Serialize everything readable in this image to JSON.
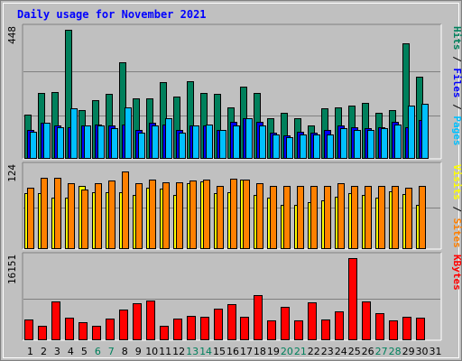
{
  "chart_data": {
    "type": "bar",
    "title": "Daily usage for November 2021",
    "colors": {
      "background": "#c0c0c0",
      "title_text": "#0000ff",
      "hits": "#00805c",
      "files": "#0000ff",
      "pages": "#00c0ff",
      "visits": "#ffff00",
      "sites": "#ff8000",
      "kbytes": "#ff0000",
      "weekend_label": "#00805c",
      "weekday_label": "#000000"
    },
    "days": [
      "1",
      "2",
      "3",
      "4",
      "5",
      "6",
      "7",
      "8",
      "9",
      "10",
      "11",
      "12",
      "13",
      "14",
      "15",
      "16",
      "17",
      "18",
      "19",
      "20",
      "21",
      "22",
      "23",
      "24",
      "25",
      "26",
      "27",
      "28",
      "29",
      "30",
      "31"
    ],
    "weekend_days": [
      "6",
      "7",
      "13",
      "14",
      "20",
      "21",
      "27",
      "28"
    ],
    "panels": [
      {
        "name": "hits-files-pages",
        "ymax_label": "448",
        "ylim": [
          0,
          448
        ],
        "side_labels": [
          {
            "text": "Pages",
            "color": "#00c0ff"
          },
          {
            "text": " / ",
            "color": "#000000"
          },
          {
            "text": "Files",
            "color": "#0000ff"
          },
          {
            "text": " / ",
            "color": "#000000"
          },
          {
            "text": "Hits",
            "color": "#00805c"
          }
        ],
        "series": [
          {
            "name": "Hits",
            "color": "#00805c",
            "values": [
              155,
              228,
              232,
              448,
              170,
              205,
              225,
              335,
              210,
              210,
              265,
              215,
              270,
              230,
              225,
              180,
              250,
              230,
              140,
              160,
              140,
              115,
              175,
              180,
              185,
              195,
              160,
              170,
              400,
              285
            ]
          },
          {
            "name": "Files",
            "color": "#0000ff",
            "values": [
              100,
              125,
              115,
              110,
              115,
              120,
              115,
              120,
              100,
              125,
              120,
              100,
              115,
              115,
              100,
              130,
              140,
              130,
              90,
              80,
              95,
              90,
              100,
              115,
              110,
              105,
              110,
              130,
              110,
              135
            ]
          },
          {
            "name": "Pages",
            "color": "#00c0ff",
            "values": [
              95,
              125,
              110,
              175,
              115,
              115,
              105,
              180,
              90,
              115,
              140,
              90,
              115,
              120,
              100,
              115,
              140,
              115,
              85,
              75,
              85,
              85,
              85,
              105,
              100,
              100,
              105,
              120,
              185,
              190
            ]
          }
        ]
      },
      {
        "name": "visits-sites",
        "ymax_label": "124",
        "ylim": [
          0,
          124
        ],
        "side_labels": [
          {
            "text": "Sites",
            "color": "#ff8000"
          },
          {
            "text": " / ",
            "color": "#000000"
          },
          {
            "text": "Visits",
            "color": "#ffff00"
          }
        ],
        "series": [
          {
            "name": "Visits",
            "color": "#ffff00",
            "values": [
              86,
              86,
              78,
              78,
              96,
              87,
              87,
              87,
              82,
              94,
              92,
              82,
              100,
              103,
              86,
              87,
              106,
              82,
              78,
              68,
              68,
              72,
              74,
              80,
              86,
              82,
              78,
              88,
              84,
              68
            ]
          },
          {
            "name": "Sites",
            "color": "#ff8000",
            "values": [
              93,
              109,
              109,
              101,
              91,
              100,
              105,
              118,
              101,
              106,
              102,
              102,
              105,
              106,
              96,
              108,
              106,
              100,
              97,
              96,
              96,
              96,
              96,
              101,
              96,
              96,
              96,
              96,
              94,
              96
            ]
          }
        ]
      },
      {
        "name": "kbytes",
        "ymax_label": "16151",
        "ylim": [
          0,
          16151
        ],
        "side_labels": [
          {
            "text": "KBytes",
            "color": "#ff0000"
          }
        ],
        "series": [
          {
            "name": "KBytes",
            "color": "#ff0000",
            "values": [
              4150,
              2900,
              7650,
              4400,
              3600,
              2850,
              4300,
              6000,
              7300,
              7750,
              2900,
              4300,
              4750,
              4700,
              6200,
              7100,
              4700,
              8900,
              3950,
              6550,
              3950,
              7400,
              4100,
              5700,
              16151,
              7650,
              5300,
              3950,
              4600,
              4500
            ]
          }
        ]
      }
    ]
  }
}
